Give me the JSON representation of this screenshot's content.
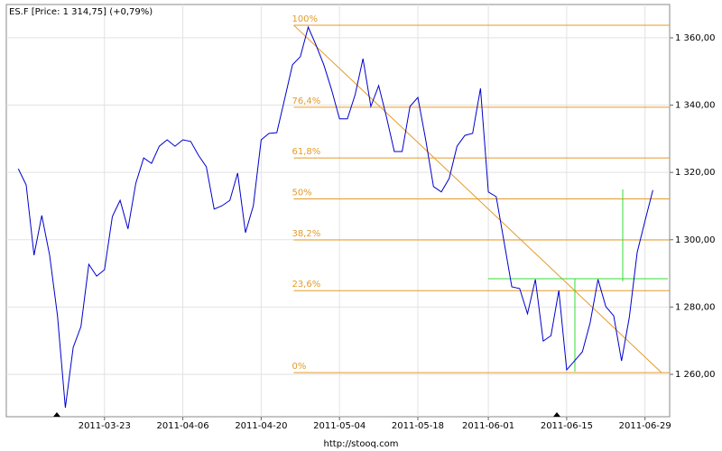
{
  "chart_data": {
    "type": "line",
    "title": "ES.F [Price: 1 314,75] (+0,79%)",
    "footer": "http://stooq.com",
    "categories": [
      null,
      null,
      null,
      null,
      null,
      null,
      null,
      null,
      null,
      null,
      null,
      "2011-03-23",
      null,
      null,
      null,
      null,
      null,
      null,
      null,
      null,
      null,
      "2011-04-06",
      null,
      null,
      null,
      null,
      null,
      null,
      null,
      null,
      null,
      "2011-04-20",
      null,
      null,
      null,
      null,
      null,
      null,
      null,
      null,
      null,
      "2011-05-04",
      null,
      null,
      null,
      null,
      null,
      null,
      null,
      null,
      null,
      "2011-05-18",
      null,
      null,
      null,
      null,
      null,
      null,
      null,
      null,
      "2011-06-01",
      null,
      null,
      null,
      null,
      null,
      null,
      null,
      null,
      null,
      "2011-06-15",
      null,
      null,
      null,
      null,
      null,
      null,
      null,
      null,
      null,
      "2011-06-29",
      null
    ],
    "series": [
      {
        "name": "ES.F",
        "color": "#0000cc",
        "values": [
          1321.1,
          1316.3,
          1295.4,
          1307.2,
          1295.4,
          1277.4,
          1250.1,
          1268.0,
          1274.2,
          1292.7,
          1289.2,
          1291.1,
          1306.9,
          1311.7,
          1303.2,
          1316.8,
          1324.3,
          1322.7,
          1327.8,
          1329.7,
          1327.8,
          1329.7,
          1329.2,
          1325.1,
          1321.7,
          1309.1,
          1310.1,
          1311.7,
          1319.8,
          1302.1,
          1310.1,
          1329.7,
          1331.6,
          1331.8,
          1341.8,
          1352.0,
          1354.4,
          1363.2,
          1357.9,
          1352.0,
          1344.5,
          1335.9,
          1335.9,
          1343.1,
          1353.8,
          1339.6,
          1345.8,
          1336.4,
          1326.2,
          1326.2,
          1339.6,
          1342.3,
          1329.7,
          1315.8,
          1314.2,
          1318.2,
          1327.8,
          1331.0,
          1331.6,
          1345.0,
          1314.2,
          1312.8,
          1299.4,
          1286.0,
          1285.5,
          1278.0,
          1288.2,
          1269.9,
          1271.5,
          1284.9,
          1261.3,
          1264.0,
          1266.7,
          1275.3,
          1288.2,
          1280.1,
          1277.4,
          1264.0,
          1276.9,
          1296.2,
          1305.6,
          1314.75
        ]
      }
    ],
    "ylim": [
      1247.4,
      1369.9
    ],
    "yticks": [
      {
        "value": 1260,
        "label": "1 260,00"
      },
      {
        "value": 1280,
        "label": "1 280,00"
      },
      {
        "value": 1300,
        "label": "1 300,00"
      },
      {
        "value": 1320,
        "label": "1 320,00"
      },
      {
        "value": 1340,
        "label": "1 340,00"
      },
      {
        "value": 1360,
        "label": "1 360,00"
      }
    ],
    "grid": true,
    "fibonacci": {
      "color": "#e39b2a",
      "high": 1363.75,
      "low": 1260.5,
      "levels": [
        {
          "value": 100,
          "label": "100%"
        },
        {
          "value": 76.4,
          "label": "76,4%"
        },
        {
          "value": 61.8,
          "label": "61,8%"
        },
        {
          "value": 50,
          "label": "50%"
        },
        {
          "value": 38.2,
          "label": "38,2%"
        },
        {
          "value": 23.6,
          "label": "23,6%"
        },
        {
          "value": 0,
          "label": "0%"
        }
      ]
    }
  }
}
